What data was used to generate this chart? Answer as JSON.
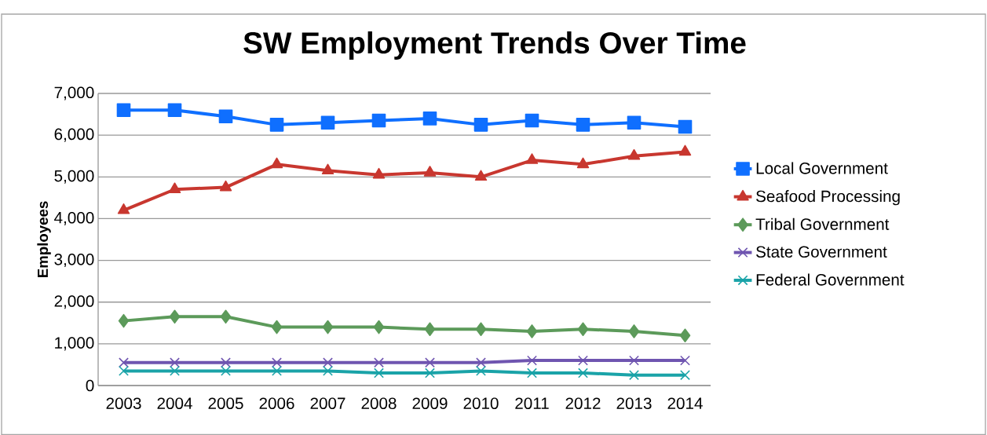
{
  "chart_data": {
    "type": "line",
    "title": "SW Employment Trends Over Time",
    "ylabel": "Employees",
    "categories": [
      "2003",
      "2004",
      "2005",
      "2006",
      "2007",
      "2008",
      "2009",
      "2010",
      "2011",
      "2012",
      "2013",
      "2014"
    ],
    "series": [
      {
        "name": "Local Government",
        "color": "#0f6fff",
        "marker": "square",
        "values": [
          6600,
          6600,
          6450,
          6250,
          6300,
          6350,
          6400,
          6250,
          6350,
          6250,
          6300,
          6200
        ]
      },
      {
        "name": "Seafood Processing",
        "color": "#c8372f",
        "marker": "triangle",
        "values": [
          4200,
          4700,
          4750,
          5300,
          5150,
          5050,
          5100,
          5000,
          5400,
          5300,
          5500,
          5600
        ]
      },
      {
        "name": "Tribal Government",
        "color": "#5c9a5a",
        "marker": "diamond",
        "values": [
          1550,
          1650,
          1650,
          1400,
          1400,
          1400,
          1350,
          1350,
          1300,
          1350,
          1300,
          1200
        ]
      },
      {
        "name": "State Government",
        "color": "#6f55b0",
        "marker": "cross",
        "values": [
          550,
          550,
          550,
          550,
          550,
          550,
          550,
          550,
          600,
          600,
          600,
          600
        ]
      },
      {
        "name": "Federal Government",
        "color": "#1aa3a8",
        "marker": "cross",
        "values": [
          350,
          350,
          350,
          350,
          350,
          300,
          300,
          350,
          300,
          300,
          250,
          250
        ]
      }
    ],
    "ylim": [
      0,
      7000
    ],
    "yticks": [
      0,
      {
        "value": 1000,
        "label": "1,000"
      },
      {
        "value": 2000,
        "label": "2,000"
      },
      {
        "value": 3000,
        "label": "3,000"
      },
      {
        "value": 4000,
        "label": "4,000"
      },
      {
        "value": 5000,
        "label": "5,000"
      },
      {
        "value": 6000,
        "label": "6,000"
      },
      {
        "value": 7000,
        "label": "7,000"
      }
    ],
    "grid": "y",
    "legend": "right",
    "line_style": "solid"
  }
}
